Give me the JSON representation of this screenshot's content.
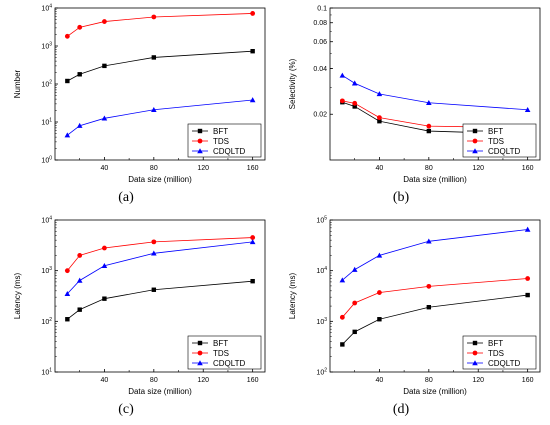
{
  "figure": {
    "panel_labels": [
      "(a)",
      "(b)",
      "(c)",
      "(d)"
    ]
  },
  "chart_data": [
    {
      "type": "line",
      "panel": "(a)",
      "xlabel": "Data size (million)",
      "ylabel": "Number",
      "x": [
        10,
        20,
        40,
        80,
        160
      ],
      "xlim": [
        0,
        170
      ],
      "xticks": [
        "40",
        "80",
        "120",
        "160"
      ],
      "yscale": "log",
      "ylim": [
        1,
        10000
      ],
      "yticks": [
        "10^0",
        "10^1",
        "10^2",
        "10^3",
        "10^4"
      ],
      "legend": "bottom-right",
      "grid": false,
      "series": [
        {
          "name": "BFT",
          "color": "#000000",
          "marker": "square",
          "values": [
            120,
            180,
            300,
            500,
            730
          ]
        },
        {
          "name": "TDS",
          "color": "#ff0000",
          "marker": "circle",
          "values": [
            1800,
            3100,
            4400,
            5800,
            7200
          ]
        },
        {
          "name": "CDQLTD",
          "color": "#0000ff",
          "marker": "triangle",
          "values": [
            4.5,
            8,
            12.5,
            21,
            38
          ]
        }
      ]
    },
    {
      "type": "line",
      "panel": "(b)",
      "xlabel": "Data size (million)",
      "ylabel": "Selectivity (%)",
      "x": [
        10,
        20,
        40,
        80,
        160
      ],
      "xlim": [
        0,
        170
      ],
      "xticks": [
        "40",
        "80",
        "120",
        "160"
      ],
      "yscale": "log",
      "ylim": [
        0.01,
        0.1
      ],
      "yticks": [
        "0.02",
        "0.04",
        "0.06",
        "0.08",
        "0.1"
      ],
      "legend": "bottom-right",
      "grid": false,
      "series": [
        {
          "name": "BFT",
          "color": "#000000",
          "marker": "square",
          "values": [
            0.024,
            0.0225,
            0.018,
            0.0155,
            0.0148
          ]
        },
        {
          "name": "TDS",
          "color": "#ff0000",
          "marker": "circle",
          "values": [
            0.0245,
            0.0236,
            0.019,
            0.0167,
            0.0163
          ]
        },
        {
          "name": "CDQLTD",
          "color": "#0000ff",
          "marker": "triangle",
          "values": [
            0.036,
            0.032,
            0.0272,
            0.0238,
            0.0214
          ]
        }
      ]
    },
    {
      "type": "line",
      "panel": "(c)",
      "xlabel": "Data size (million)",
      "ylabel": "Latency (ms)",
      "x": [
        10,
        20,
        40,
        80,
        160
      ],
      "xlim": [
        0,
        170
      ],
      "xticks": [
        "40",
        "80",
        "120",
        "160"
      ],
      "yscale": "log",
      "ylim": [
        10,
        10000
      ],
      "yticks": [
        "10^1",
        "10^2",
        "10^3",
        "10^4"
      ],
      "legend": "bottom-right",
      "grid": false,
      "series": [
        {
          "name": "BFT",
          "color": "#000000",
          "marker": "square",
          "values": [
            110,
            170,
            280,
            420,
            620
          ]
        },
        {
          "name": "TDS",
          "color": "#ff0000",
          "marker": "circle",
          "values": [
            1000,
            2000,
            2800,
            3700,
            4500
          ]
        },
        {
          "name": "CDQLTD",
          "color": "#0000ff",
          "marker": "triangle",
          "values": [
            350,
            640,
            1250,
            2200,
            3700
          ]
        }
      ]
    },
    {
      "type": "line",
      "panel": "(d)",
      "xlabel": "Data size (million)",
      "ylabel": "Latency (ms)",
      "x": [
        10,
        20,
        40,
        80,
        160
      ],
      "xlim": [
        0,
        170
      ],
      "xticks": [
        "40",
        "80",
        "120",
        "160"
      ],
      "yscale": "log",
      "ylim": [
        100,
        100000
      ],
      "yticks": [
        "10^2",
        "10^3",
        "10^4",
        "10^5"
      ],
      "legend": "bottom-right",
      "grid": false,
      "series": [
        {
          "name": "BFT",
          "color": "#000000",
          "marker": "square",
          "values": [
            350,
            620,
            1100,
            1900,
            3300
          ]
        },
        {
          "name": "TDS",
          "color": "#ff0000",
          "marker": "circle",
          "values": [
            1200,
            2300,
            3700,
            4900,
            7000
          ]
        },
        {
          "name": "CDQLTD",
          "color": "#0000ff",
          "marker": "triangle",
          "values": [
            6500,
            10500,
            20000,
            38000,
            65000
          ]
        }
      ]
    }
  ]
}
